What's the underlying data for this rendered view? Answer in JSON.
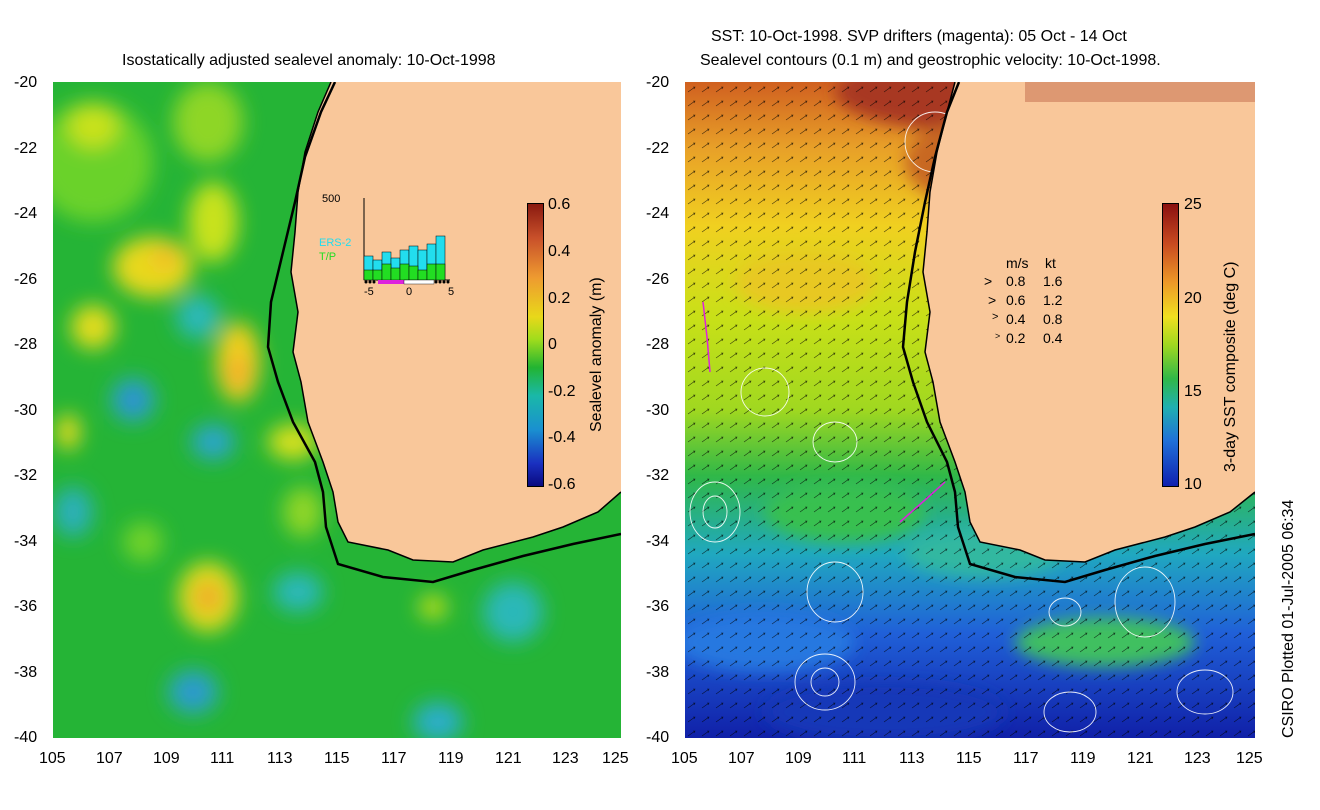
{
  "left_panel": {
    "title": "Isostatically adjusted sealevel anomaly: 10-Oct-1998",
    "colorbar_label": "Sealevel anomaly (m)",
    "colorbar_ticks": [
      "0.6",
      "0.4",
      "0.2",
      "0",
      "-0.2",
      "-0.4",
      "-0.6"
    ],
    "inset": {
      "y_top_label": "500",
      "x_labels": [
        "-5",
        "0",
        "5"
      ],
      "legend_ers": "ERS-2",
      "legend_tp": "T/P",
      "ers_color": "#22ddee",
      "tp_color": "#22dd22"
    }
  },
  "right_panel": {
    "title_line1": "SST: 10-Oct-1998. SVP drifters (magenta): 05 Oct - 14 Oct",
    "title_line2": "Sealevel contours (0.1 m) and geostrophic velocity: 10-Oct-1998.",
    "colorbar_label": "3-day SST composite (deg C)",
    "colorbar_ticks": [
      "25",
      "20",
      "15",
      "10"
    ],
    "velocity_legend": {
      "header_ms": "m/s",
      "header_kt": "kt",
      "rows": [
        {
          "ms": "0.8",
          "kt": "1.6"
        },
        {
          "ms": "0.6",
          "kt": "1.2"
        },
        {
          "ms": "0.4",
          "kt": "0.8"
        },
        {
          "ms": "0.2",
          "kt": "0.4"
        }
      ]
    }
  },
  "y_ticks": [
    "-20",
    "-22",
    "-24",
    "-26",
    "-28",
    "-30",
    "-32",
    "-34",
    "-36",
    "-38",
    "-40"
  ],
  "x_ticks": [
    "105",
    "107",
    "109",
    "111",
    "113",
    "115",
    "117",
    "119",
    "121",
    "123",
    "125"
  ],
  "credit": "CSIRO Plotted 01-Jul-2005 06:34",
  "colors": {
    "land": "#f9c79a",
    "coast": "#000000",
    "drifter": "#dd22dd"
  }
}
